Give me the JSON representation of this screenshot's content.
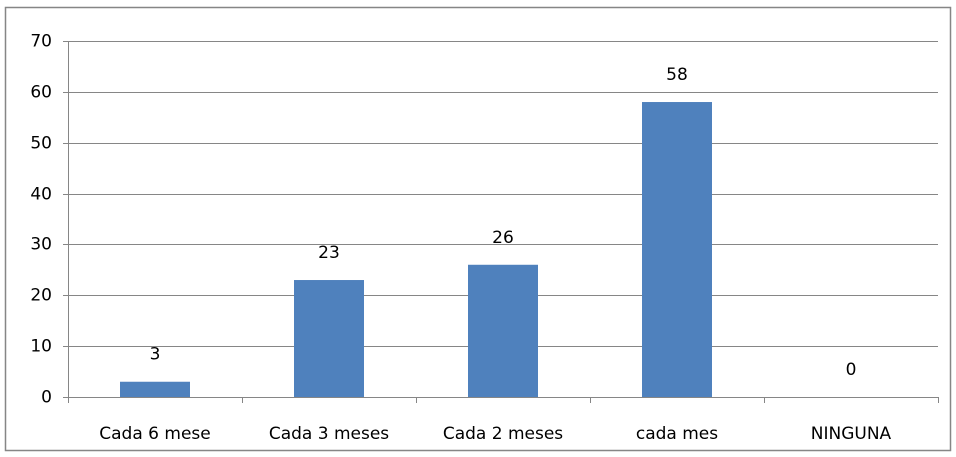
{
  "chart_data": {
    "type": "bar",
    "categories": [
      "Cada 6 mese",
      "Cada 3 meses",
      "Cada 2 meses",
      "cada mes",
      "NINGUNA"
    ],
    "values": [
      3,
      23,
      26,
      58,
      0
    ],
    "color": "#4f81bd",
    "ylim": [
      0,
      70
    ],
    "yticks": [
      0,
      10,
      20,
      30,
      40,
      50,
      60,
      70
    ],
    "grid": true,
    "data_labels": true
  }
}
